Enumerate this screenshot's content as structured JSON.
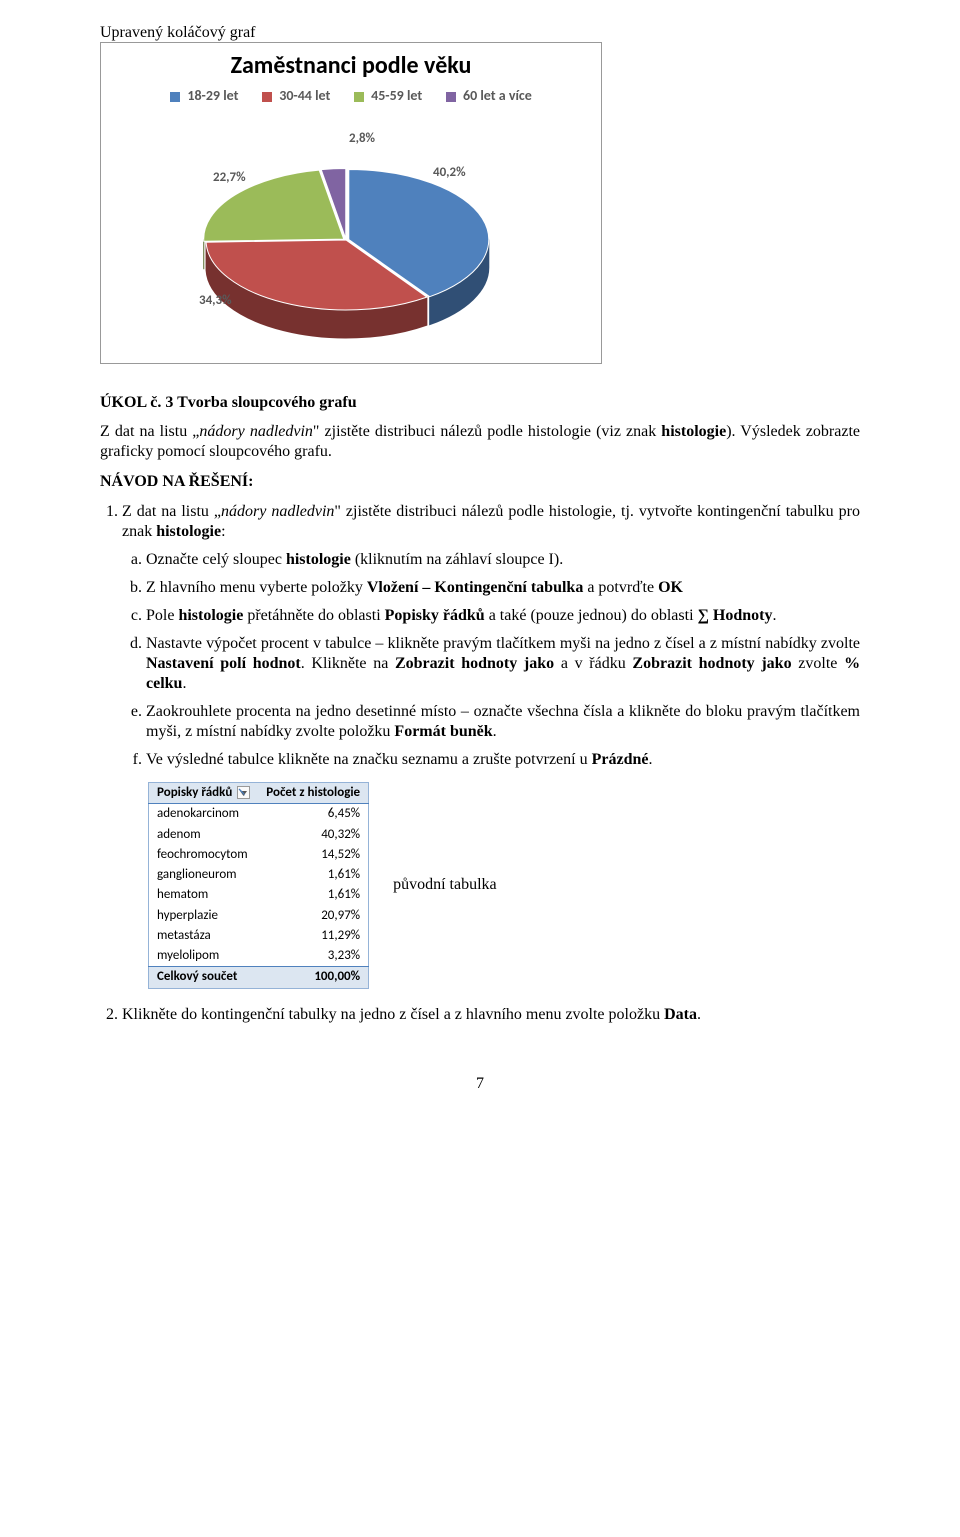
{
  "caption_above_chart": "Upravený koláčový graf",
  "pie_chart": {
    "type": "pie-3d",
    "title": "Zaměstnanci podle věku",
    "title_fontsize": 24,
    "legend_fontsize": 14,
    "legend_text_color": "#595959",
    "label_fontsize": 13,
    "label_text_color": "#595959",
    "background_color": "#ffffff",
    "border_color": "#999999",
    "categories": [
      "18-29 let",
      "30-44 let",
      "45-59 let",
      "60 let a více"
    ],
    "values_pct": [
      40.2,
      34.3,
      22.7,
      2.8
    ],
    "slice_colors": [
      "#4f81bd",
      "#c0504d",
      "#9bbb59",
      "#8064a2"
    ],
    "explode": [
      0.06,
      0,
      0.06,
      0.06
    ],
    "labels_on_chart": {
      "18-29 let": "40,2%",
      "30-44 let": "34,3%",
      "45-59 let": "22,7%",
      "60 let a více": "2,8%"
    }
  },
  "task_number": "ÚKOL č. 3",
  "task_title_rest": "Tvorba sloupcového grafu",
  "task_paragraph_parts": {
    "p1a": "Z dat na listu „",
    "p1_italic": "nádory nadledvin",
    "p1b": "\" zjistěte distribuci nálezů podle histologie (viz znak ",
    "p1_bold": "histologie",
    "p1c": "). Výsledek zobrazte graficky pomocí sloupcového grafu."
  },
  "navod_heading": "NÁVOD NA ŘEŠENÍ:",
  "step1": {
    "prefix": "Z dat na listu „",
    "italic": "nádory nadledvin",
    "mid": "\" zjistěte distribuci nálezů podle histologie, tj. vytvořte kontingenční tabulku pro znak ",
    "bold": "histologie",
    "suffix": ":"
  },
  "sub_a": {
    "t1": "Označte celý sloupec ",
    "b1": "histologie",
    "t2": " (kliknutím na záhlaví sloupce I)."
  },
  "sub_b": {
    "t1": "Z hlavního menu vyberte položky ",
    "b1": "Vložení – Kontingenční tabulka",
    "t2": " a potvrďte ",
    "b2": "OK"
  },
  "sub_c": {
    "t1": "Pole ",
    "b1": "histologie",
    "t2": " přetáhněte do oblasti ",
    "b2": "Popisky řádků",
    "t3": " a také (pouze jednou) do oblasti ",
    "b3": "∑ Hodnoty",
    "t4": "."
  },
  "sub_d": {
    "t1": "Nastavte výpočet procent v tabulce – klikněte pravým tlačítkem myši na jedno z čísel a z místní nabídky zvolte ",
    "b1": "Nastavení polí hodnot",
    "t2": ". Klikněte na ",
    "b2": "Zobrazit hodnoty jako",
    "t3": " a v řádku ",
    "b3": "Zobrazit hodnoty jako",
    "t4": " zvolte ",
    "b4": "% celku",
    "t5": "."
  },
  "sub_e": {
    "t1": "Zaokrouhlete procenta na jedno desetinné místo – označte všechna čísla a klikněte do bloku pravým tlačítkem myši, z místní nabídky zvolte položku ",
    "b1": "Formát buněk",
    "t2": "."
  },
  "sub_f": {
    "t1": "Ve výsledné tabulce klikněte na značku seznamu a zrušte potvrzení u ",
    "b1": "Prázdné",
    "t2": "."
  },
  "pivot_table": {
    "type": "table",
    "header_bg": "#dce6f1",
    "border_color": "#95b3d7",
    "accent_line_color": "#4f81bd",
    "font_family": "Calibri",
    "font_size": 13,
    "columns": [
      "Popisky řádků",
      "Počet z histologie"
    ],
    "rows": [
      [
        "adenokarcinom",
        "6,45%"
      ],
      [
        "adenom",
        "40,32%"
      ],
      [
        "feochromocytom",
        "14,52%"
      ],
      [
        "ganglioneurom",
        "1,61%"
      ],
      [
        "hematom",
        "1,61%"
      ],
      [
        "hyperplazie",
        "20,97%"
      ],
      [
        "metastáza",
        "11,29%"
      ],
      [
        "myelolipom",
        "3,23%"
      ]
    ],
    "total_row": [
      "Celkový součet",
      "100,00%"
    ]
  },
  "pivot_caption": "původní tabulka",
  "step2": {
    "t1": "Klikněte do kontingenční tabulky na jedno z čísel a z hlavního menu zvolte položku ",
    "b1": "Data",
    "t2": "."
  },
  "page_number": "7"
}
